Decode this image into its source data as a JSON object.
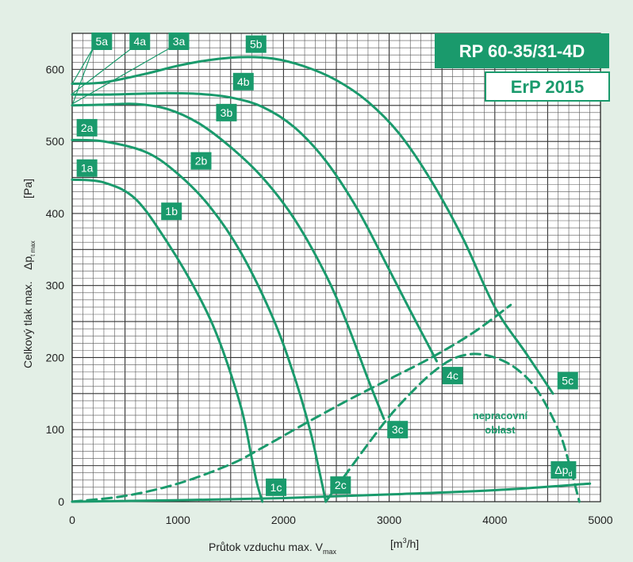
{
  "chart_data": {
    "type": "line",
    "title": "RP 60-35/31-4D",
    "subtitle": "ErP 2015",
    "xlabel": "Průtok vzduchu max. V",
    "xlabel_sub": "max",
    "xunit_pre": "[m",
    "xunit_sup": "3",
    "xunit_post": "/h]",
    "ylabel_main": "Celkový tlak max.",
    "ylabel_delta": "Δp",
    "ylabel_sub": "t max",
    "yunit": "[Pa]",
    "xlim": [
      0,
      5000
    ],
    "ylim": [
      0,
      650
    ],
    "xticks": [
      0,
      1000,
      2000,
      3000,
      4000,
      5000
    ],
    "yticks": [
      0,
      100,
      200,
      300,
      400,
      500,
      600
    ],
    "grid": true,
    "colors": {
      "curve": "#1a9a6c",
      "tag": "#1a9a6c",
      "background": "#e3efe6",
      "plot": "#ffffff"
    },
    "series": [
      {
        "name": "1",
        "style": "solid",
        "x": [
          0,
          300,
          600,
          900,
          1200,
          1400,
          1600,
          1700,
          1750,
          1800
        ],
        "y": [
          447,
          443,
          420,
          360,
          285,
          220,
          130,
          60,
          25,
          0
        ]
      },
      {
        "name": "2",
        "style": "solid",
        "x": [
          0,
          300,
          700,
          1000,
          1300,
          1600,
          1900,
          2100,
          2250,
          2350,
          2400
        ],
        "y": [
          502,
          500,
          485,
          455,
          410,
          345,
          255,
          175,
          100,
          35,
          0
        ]
      },
      {
        "name": "3",
        "style": "solid",
        "x": [
          0,
          300,
          600,
          900,
          1200,
          1500,
          1800,
          2100,
          2400,
          2600,
          2800,
          2950
        ],
        "y": [
          550,
          551,
          552,
          545,
          525,
          492,
          450,
          393,
          315,
          248,
          170,
          115
        ]
      },
      {
        "name": "4",
        "style": "solid",
        "x": [
          0,
          300,
          600,
          900,
          1200,
          1500,
          1800,
          2100,
          2400,
          2700,
          3000,
          3200,
          3450
        ],
        "y": [
          565,
          565,
          566,
          567,
          566,
          561,
          548,
          520,
          473,
          406,
          322,
          265,
          195
        ]
      },
      {
        "name": "5",
        "style": "solid",
        "x": [
          0,
          300,
          700,
          1000,
          1300,
          1600,
          1900,
          2200,
          2500,
          2800,
          3100,
          3400,
          3700,
          4000,
          4300,
          4550
        ],
        "y": [
          580,
          582,
          594,
          605,
          613,
          617,
          615,
          604,
          585,
          555,
          510,
          445,
          365,
          270,
          205,
          150
        ]
      },
      {
        "name": "working-boundary",
        "style": "dashed",
        "x": [
          0,
          500,
          1000,
          1500,
          1800,
          2200,
          2600,
          3000,
          3400,
          3800,
          4150
        ],
        "y": [
          0,
          8,
          25,
          52,
          75,
          108,
          140,
          170,
          200,
          235,
          273
        ]
      },
      {
        "name": "non-working-boundary",
        "style": "dashed",
        "x": [
          2400,
          2600,
          2800,
          3000,
          3200,
          3400,
          3600,
          3800,
          4000,
          4200,
          4400,
          4600,
          4700,
          4800
        ],
        "y": [
          0,
          40,
          80,
          118,
          150,
          178,
          198,
          205,
          200,
          185,
          155,
          100,
          55,
          0
        ]
      },
      {
        "name": "Δpd",
        "style": "solid",
        "x": [
          0,
          1000,
          2000,
          3000,
          4000,
          4900
        ],
        "y": [
          0,
          2,
          5,
          10,
          16,
          25
        ]
      }
    ],
    "labels": [
      {
        "text": "1a",
        "x": 140,
        "y": 463
      },
      {
        "text": "1b",
        "x": 940,
        "y": 403
      },
      {
        "text": "1c",
        "x": 1930,
        "y": 20
      },
      {
        "text": "2a",
        "x": 140,
        "y": 519
      },
      {
        "text": "2b",
        "x": 1220,
        "y": 473
      },
      {
        "text": "2c",
        "x": 2540,
        "y": 23
      },
      {
        "text": "3a",
        "x": 1010,
        "y": 639
      },
      {
        "text": "3b",
        "x": 1460,
        "y": 540
      },
      {
        "text": "3c",
        "x": 3080,
        "y": 100
      },
      {
        "text": "4a",
        "x": 640,
        "y": 639
      },
      {
        "text": "4b",
        "x": 1620,
        "y": 583
      },
      {
        "text": "4c",
        "x": 3600,
        "y": 175
      },
      {
        "text": "5a",
        "x": 280,
        "y": 639
      },
      {
        "text": "5b",
        "x": 1740,
        "y": 635
      },
      {
        "text": "5c",
        "x": 4690,
        "y": 168
      },
      {
        "text": "Δp",
        "sub": "d",
        "x": 4650,
        "y": 44
      }
    ],
    "leader_lines": [
      {
        "from": [
          0,
          580
        ],
        "to": [
          200,
          630
        ]
      },
      {
        "from": [
          0,
          566
        ],
        "to": [
          570,
          630
        ]
      },
      {
        "from": [
          0,
          552
        ],
        "to": [
          930,
          630
        ]
      },
      {
        "from": [
          0,
          550
        ],
        "to": [
          200,
          630
        ]
      }
    ],
    "annotation": {
      "line1": "nepracovní",
      "line2": "oblast",
      "x": 4050,
      "y": 110
    }
  }
}
